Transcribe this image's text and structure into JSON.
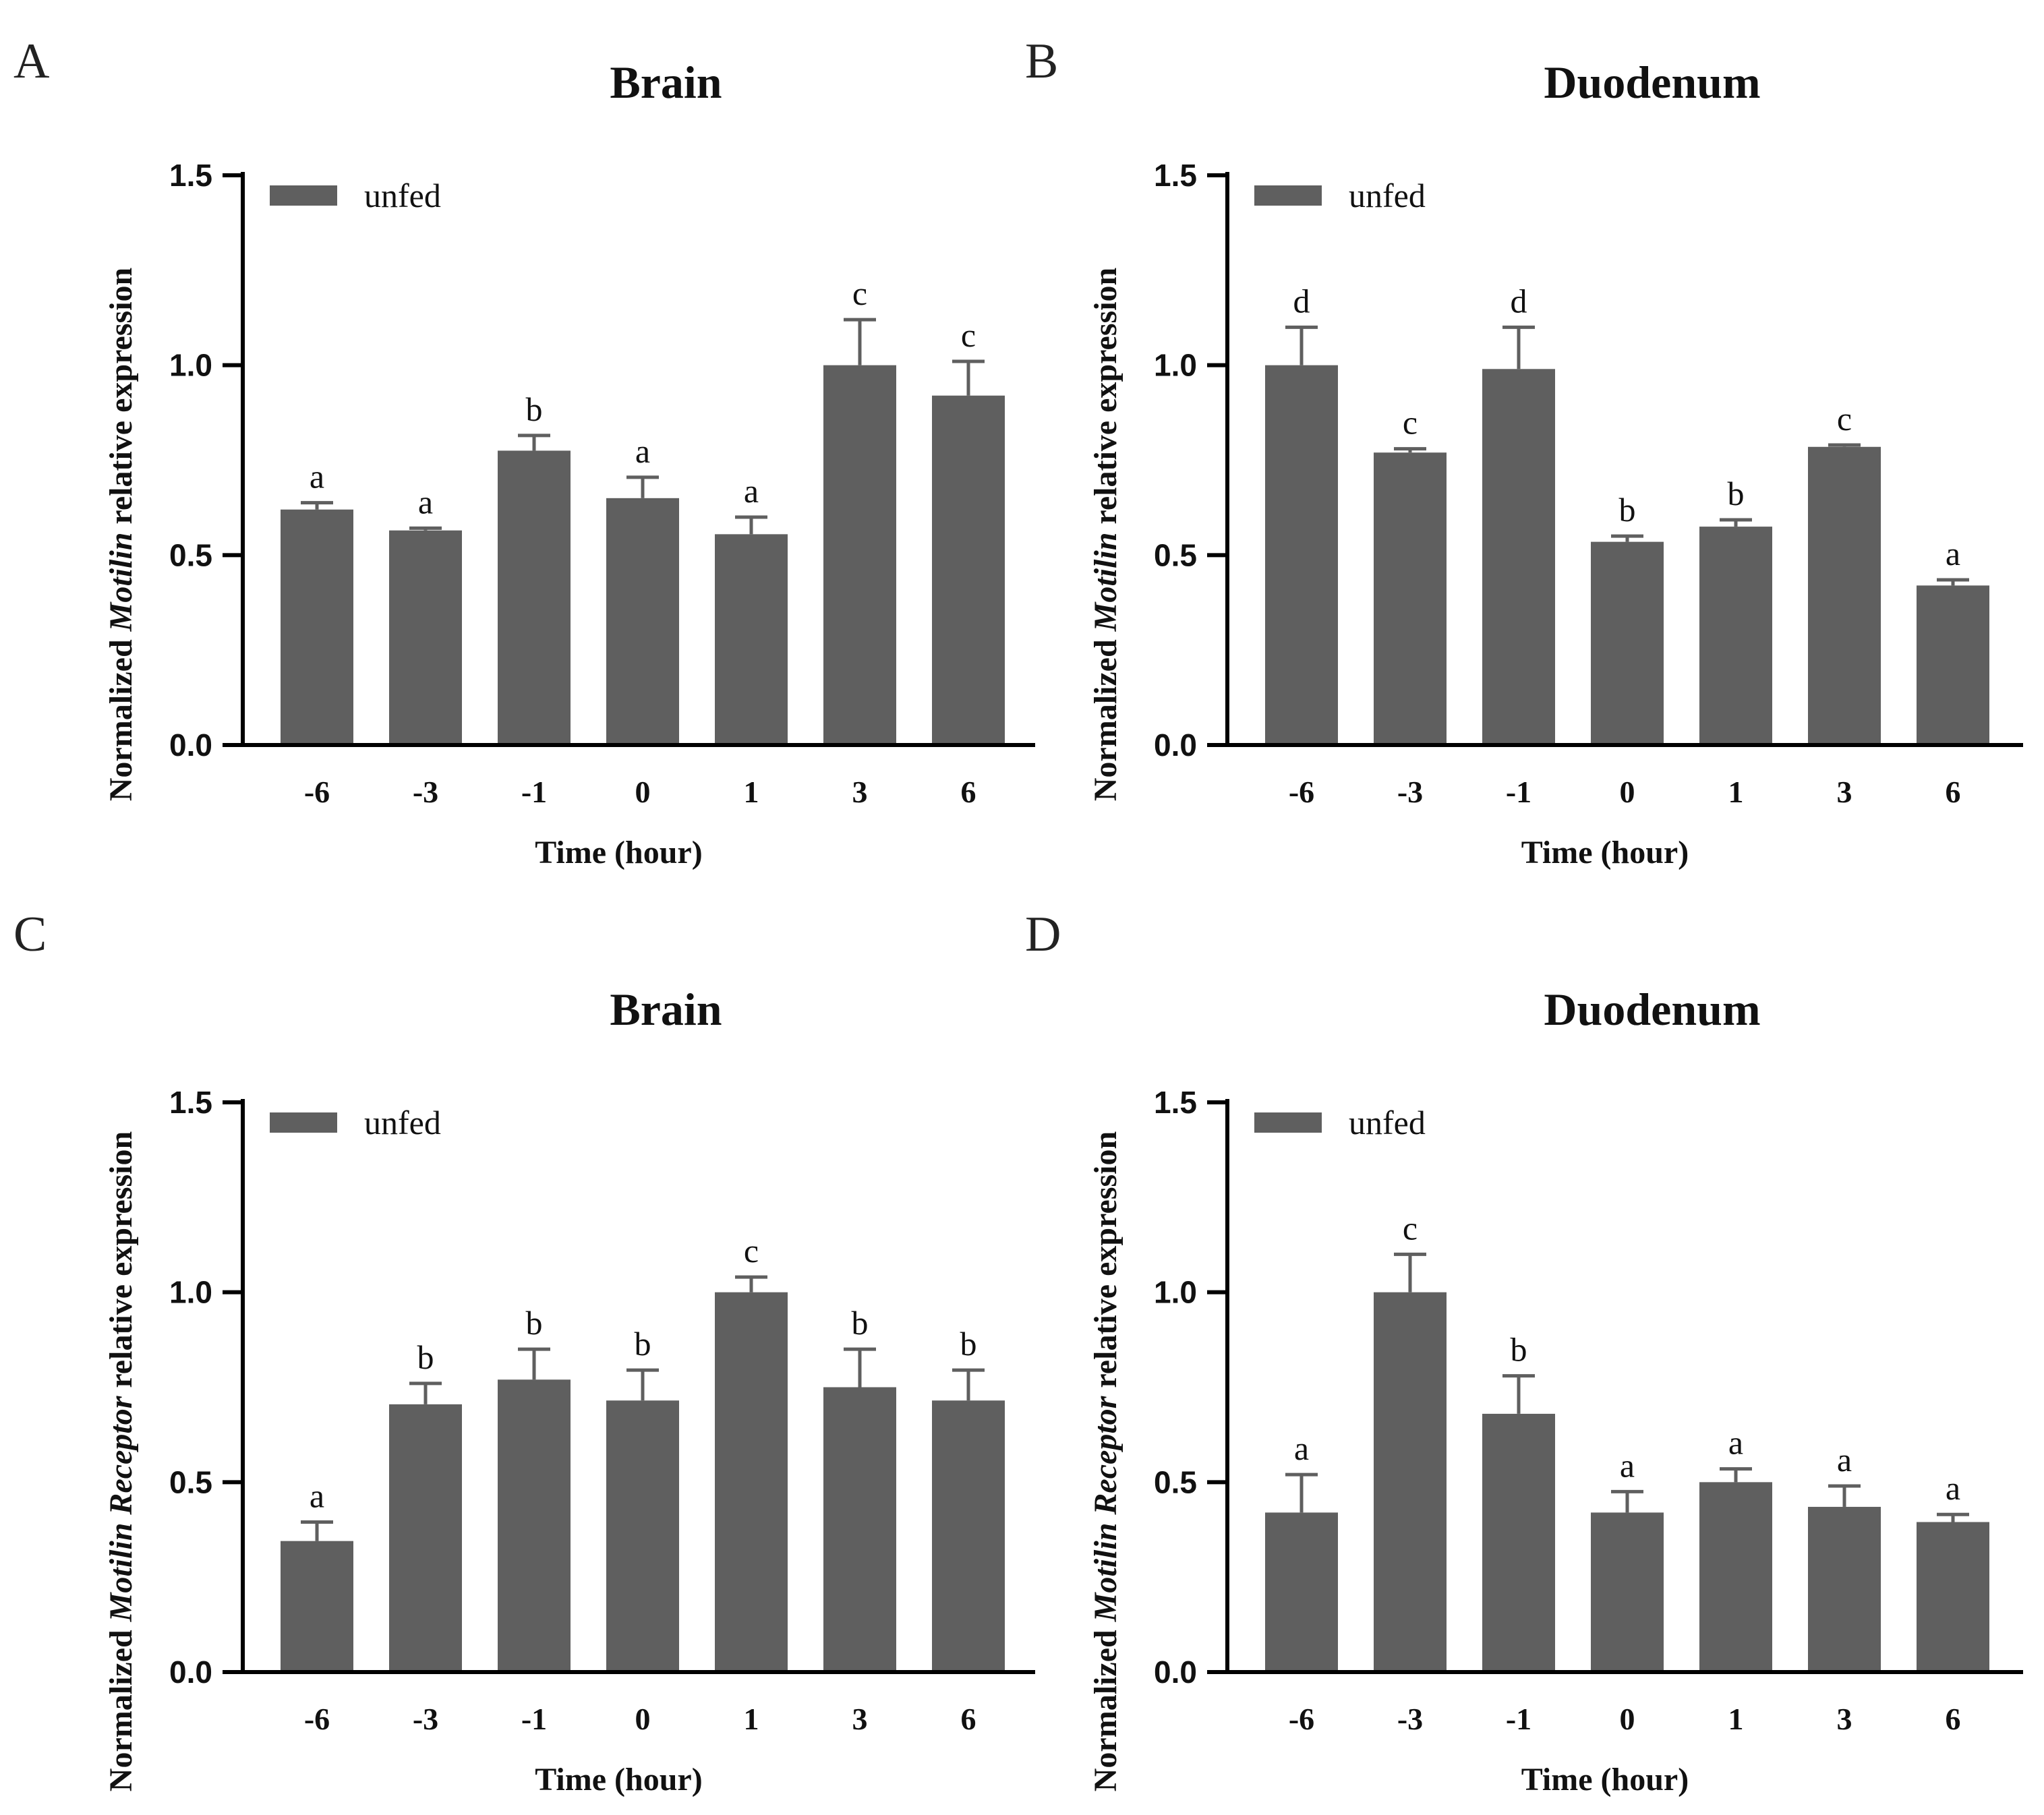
{
  "figure": {
    "bar_color": "#5f5f5f",
    "axis_color": "#000000"
  },
  "chart_data": [
    {
      "type": "bar",
      "panel": "A",
      "title": "Brain",
      "xlabel": "Time (hour)",
      "ylabel_parts": [
        "Normalized ",
        "Motilin",
        " relative expression"
      ],
      "ylim": [
        0,
        1.5
      ],
      "yticks": [
        "0.0",
        "0.5",
        "1.0",
        "1.5"
      ],
      "legend": "unfed",
      "categories": [
        "-6",
        "-3",
        "-1",
        "0",
        "1",
        "3",
        "6"
      ],
      "values": [
        0.62,
        0.565,
        0.775,
        0.65,
        0.555,
        1.0,
        0.92
      ],
      "errors": [
        0.018,
        0.006,
        0.04,
        0.055,
        0.045,
        0.12,
        0.09
      ],
      "sig": [
        "a",
        "a",
        "b",
        "a",
        "a",
        "c",
        "c"
      ]
    },
    {
      "type": "bar",
      "panel": "B",
      "title": "Duodenum",
      "xlabel": "Time (hour)",
      "ylabel_parts": [
        "Normalized ",
        "Motilin",
        " relative expression"
      ],
      "ylim": [
        0,
        1.5
      ],
      "yticks": [
        "0.0",
        "0.5",
        "1.0",
        "1.5"
      ],
      "legend": "unfed",
      "categories": [
        "-6",
        "-3",
        "-1",
        "0",
        "1",
        "3",
        "6"
      ],
      "values": [
        1.0,
        0.77,
        0.99,
        0.535,
        0.575,
        0.785,
        0.42
      ],
      "errors": [
        0.1,
        0.01,
        0.11,
        0.015,
        0.018,
        0.005,
        0.015
      ],
      "sig": [
        "d",
        "c",
        "d",
        "b",
        "b",
        "c",
        "a"
      ]
    },
    {
      "type": "bar",
      "panel": "C",
      "title": "Brain",
      "xlabel": "Time (hour)",
      "ylabel_parts": [
        "Normalized ",
        "Motilin Receptor",
        " relative expression"
      ],
      "ylim": [
        0,
        1.5
      ],
      "yticks": [
        "0.0",
        "0.5",
        "1.0",
        "1.5"
      ],
      "legend": "unfed",
      "categories": [
        "-6",
        "-3",
        "-1",
        "0",
        "1",
        "3",
        "6"
      ],
      "values": [
        0.345,
        0.705,
        0.77,
        0.715,
        1.0,
        0.75,
        0.715
      ],
      "errors": [
        0.05,
        0.055,
        0.08,
        0.08,
        0.04,
        0.1,
        0.08
      ],
      "sig": [
        "a",
        "b",
        "b",
        "b",
        "c",
        "b",
        "b"
      ]
    },
    {
      "type": "bar",
      "panel": "D",
      "title": "Duodenum",
      "xlabel": "Time (hour)",
      "ylabel_parts": [
        "Normalized ",
        "Motilin Receptor",
        " relative expression"
      ],
      "ylim": [
        0,
        1.5
      ],
      "yticks": [
        "0.0",
        "0.5",
        "1.0",
        "1.5"
      ],
      "legend": "unfed",
      "categories": [
        "-6",
        "-3",
        "-1",
        "0",
        "1",
        "3",
        "6"
      ],
      "values": [
        0.42,
        1.0,
        0.68,
        0.42,
        0.5,
        0.435,
        0.395
      ],
      "errors": [
        0.1,
        0.1,
        0.1,
        0.055,
        0.035,
        0.055,
        0.02
      ],
      "sig": [
        "a",
        "c",
        "b",
        "a",
        "a",
        "a",
        "a"
      ]
    }
  ]
}
